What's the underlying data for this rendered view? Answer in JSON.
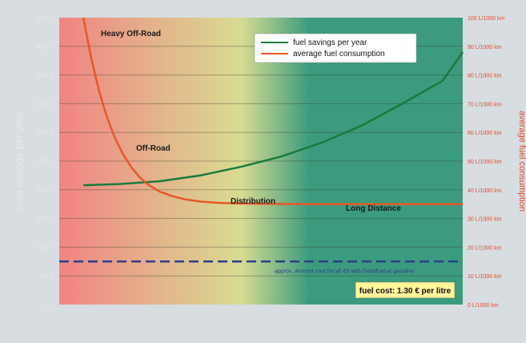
{
  "chart_data": {
    "type": "line",
    "y_axis_left": {
      "label": "Fuel savings per year",
      "ticks": [
        "0 €",
        "50 €",
        "100 €",
        "150 €",
        "200 €",
        "250 €",
        "300 €",
        "350 €",
        "400 €",
        "450 €",
        "500 €"
      ],
      "range": [
        0,
        500
      ]
    },
    "y_axis_right": {
      "label": "average fuel consumption",
      "ticks": [
        "0 L/1000 km",
        "10 L/1000 km",
        "20 L/1000 km",
        "30 L/1000 km",
        "40 L/1000 km",
        "50 L/1000 km",
        "60 L/1000 km",
        "70 L/1000 km",
        "80 L/1000 km",
        "90 L/1000 km",
        "100 L/1000 km"
      ],
      "range": [
        0,
        100
      ]
    },
    "series": [
      {
        "name": "fuel savings per year",
        "axis": "left",
        "color": "#1a7a3e",
        "x": [
          0.06,
          0.15,
          0.25,
          0.35,
          0.45,
          0.55,
          0.65,
          0.75,
          0.85,
          0.95,
          1.0
        ],
        "values": [
          208,
          210,
          215,
          225,
          240,
          258,
          282,
          312,
          350,
          390,
          440
        ]
      },
      {
        "name": "average fuel consumption",
        "axis": "right",
        "color": "#e8572a",
        "x": [
          0.06,
          0.07,
          0.08,
          0.09,
          0.1,
          0.11,
          0.12,
          0.13,
          0.14,
          0.16,
          0.18,
          0.2,
          0.22,
          0.25,
          0.28,
          0.31,
          0.35,
          0.4,
          0.45,
          0.5,
          0.6,
          0.7,
          0.8,
          0.9,
          1.0
        ],
        "values": [
          100,
          92.4,
          85.5,
          79.4,
          73.9,
          69.1,
          64.7,
          60.9,
          57.5,
          51.9,
          47.6,
          44.3,
          41.8,
          39.3,
          37.8,
          36.7,
          35.9,
          35.4,
          35.2,
          35.1,
          35.0,
          35.0,
          35.0,
          35.0,
          35.0
        ]
      }
    ],
    "reference_line": {
      "value": 75,
      "label": "approx. Antronx cost for all 4S with Goodfuel at gasoline",
      "color": "#2d3e8c"
    },
    "regions": [
      {
        "label": "Heavy Off-Road"
      },
      {
        "label": "Off-Road"
      },
      {
        "label": "Distribution"
      },
      {
        "label": "Long Distance"
      }
    ],
    "legend": {
      "placement": "top-right",
      "entries": [
        "fuel savings per year",
        "average fuel consumption"
      ]
    },
    "note": "fuel cost: 1.30 € per litre",
    "grid": true
  },
  "colors": {
    "bg_left": "#f08483",
    "bg_mid": "#d8dc92",
    "bg_right": "#3c9b7e",
    "left_axis_text": "#e8e8e8",
    "right_axis_text": "#e8482c",
    "note_bg": "#fff59a"
  }
}
